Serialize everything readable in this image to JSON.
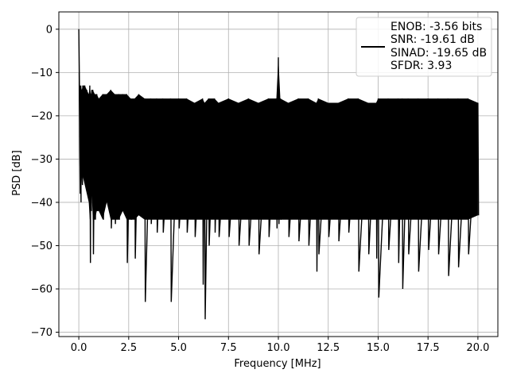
{
  "chart_data": {
    "type": "line",
    "title": "",
    "xlabel": "Frequency [MHz]",
    "ylabel": "PSD [dB]",
    "xlim": [
      -1.0,
      21.0
    ],
    "ylim": [
      -71,
      4
    ],
    "grid": true,
    "legend_position": "top-right",
    "x_ticks": [
      0.0,
      2.5,
      5.0,
      7.5,
      10.0,
      12.5,
      15.0,
      17.5,
      20.0
    ],
    "x_tick_labels": [
      "0.0",
      "2.5",
      "5.0",
      "7.5",
      "10.0",
      "12.5",
      "15.0",
      "17.5",
      "20.0"
    ],
    "y_ticks": [
      0,
      -10,
      -20,
      -30,
      -40,
      -50,
      -60,
      -70
    ],
    "y_tick_labels": [
      "0",
      "−10",
      "−20",
      "−30",
      "−40",
      "−50",
      "−60",
      "−70"
    ],
    "legend": {
      "lines": [
        "ENOB: -3.56 bits",
        "SNR: -19.61 dB",
        "SINAD: -19.65 dB",
        "SFDR: 3.93"
      ]
    },
    "series": [
      {
        "color": "#000000",
        "x": [
          0.0,
          0.02,
          0.04,
          0.06,
          0.08,
          0.1,
          0.15,
          0.2,
          0.3,
          0.4,
          0.5,
          0.55,
          0.6,
          0.65,
          0.7,
          0.8,
          0.9,
          1.0,
          1.2,
          1.4,
          1.6,
          1.8,
          2.0,
          2.2,
          2.4,
          2.6,
          2.8,
          3.0,
          3.3,
          3.6,
          3.9,
          4.2,
          4.6,
          5.0,
          5.4,
          5.8,
          6.2,
          6.3,
          6.5,
          6.8,
          7.0,
          7.5,
          8.0,
          8.5,
          9.0,
          9.5,
          9.9,
          10.0,
          10.1,
          10.5,
          11.0,
          11.5,
          11.9,
          12.0,
          12.5,
          13.0,
          13.5,
          14.0,
          14.5,
          14.9,
          15.0,
          15.5,
          16.0,
          16.2,
          16.5,
          17.0,
          17.5,
          18.0,
          18.5,
          19.0,
          19.5,
          20.0
        ],
        "upper": [
          0,
          -10,
          -14,
          -13,
          -14,
          -13,
          -14,
          -13,
          -13,
          -14,
          -15,
          -13,
          -15,
          -14,
          -14,
          -15,
          -15,
          -16,
          -15,
          -15,
          -14,
          -15,
          -15,
          -15,
          -15,
          -16,
          -16,
          -15,
          -16,
          -16,
          -16,
          -16,
          -16,
          -16,
          -16,
          -17,
          -16,
          -17,
          -16,
          -16,
          -17,
          -16,
          -17,
          -16,
          -17,
          -16,
          -16,
          -6.5,
          -16,
          -17,
          -16,
          -16,
          -17,
          -16,
          -17,
          -17,
          -16,
          -16,
          -17,
          -17,
          -16,
          -16,
          -16,
          -16,
          -16,
          -16,
          -16,
          -16,
          -16,
          -16,
          -16,
          -17
        ],
        "lower": [
          -13,
          -25,
          -38,
          -30,
          -40,
          -30,
          -36,
          -34,
          -36,
          -38,
          -40,
          -54,
          -42,
          -38,
          -52,
          -44,
          -42,
          -42,
          -44,
          -40,
          -46,
          -45,
          -44,
          -42,
          -54,
          -44,
          -53,
          -43,
          -63,
          -45,
          -47,
          -47,
          -63,
          -46,
          -47,
          -48,
          -59,
          -67,
          -50,
          -47,
          -48,
          -48,
          -50,
          -50,
          -52,
          -48,
          -46,
          -45,
          -44,
          -48,
          -49,
          -50,
          -56,
          -52,
          -48,
          -49,
          -47,
          -56,
          -52,
          -53,
          -62,
          -51,
          -54,
          -60,
          -52,
          -56,
          -51,
          -52,
          -57,
          -55,
          -52,
          -43
        ]
      }
    ]
  }
}
